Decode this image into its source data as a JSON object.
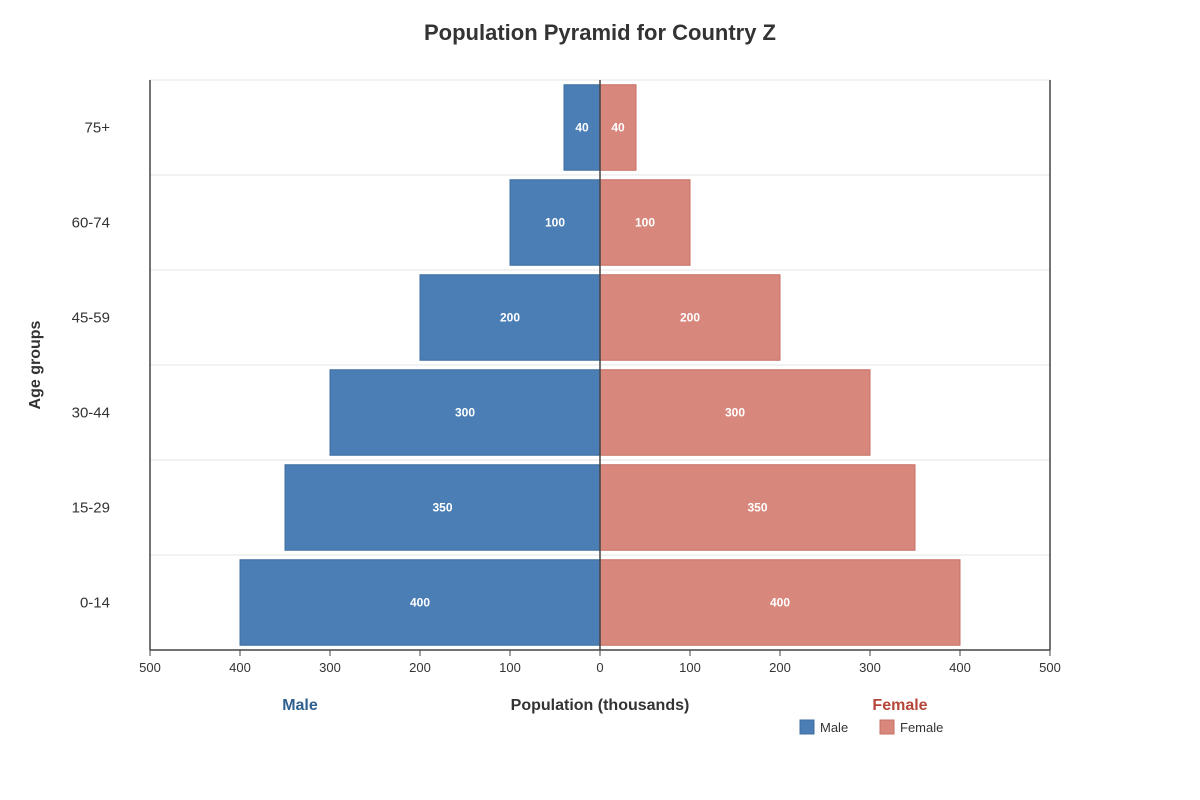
{
  "chart_data": {
    "type": "bar",
    "orientation": "horizontal",
    "layout": "population-pyramid",
    "title": "Population Pyramid for Country Z",
    "ylabel": "Age groups",
    "xlabel": "Population (thousands)",
    "categories": [
      "0-14",
      "15-29",
      "30-44",
      "45-59",
      "60-74",
      "75+"
    ],
    "series": [
      {
        "name": "Male",
        "side": "left",
        "color": "#4a7eb4",
        "values": [
          400,
          350,
          300,
          200,
          100,
          40
        ]
      },
      {
        "name": "Female",
        "side": "right",
        "color": "#d8877c",
        "values": [
          400,
          350,
          300,
          200,
          100,
          40
        ]
      }
    ],
    "xlim": [
      -500,
      500
    ],
    "xticks": [
      -500,
      -400,
      -300,
      -200,
      -100,
      0,
      100,
      200,
      300,
      400,
      500
    ],
    "xtick_labels": [
      "500",
      "400",
      "300",
      "200",
      "100",
      "0",
      "100",
      "200",
      "300",
      "400",
      "500"
    ],
    "side_labels": {
      "left": {
        "text": "Male",
        "color": "#2e5f8f"
      },
      "right": {
        "text": "Female",
        "color": "#b5463a"
      }
    },
    "legend": {
      "position": "bottom-right",
      "entries": [
        "Male",
        "Female"
      ]
    },
    "grid": true,
    "data_labels": true
  }
}
